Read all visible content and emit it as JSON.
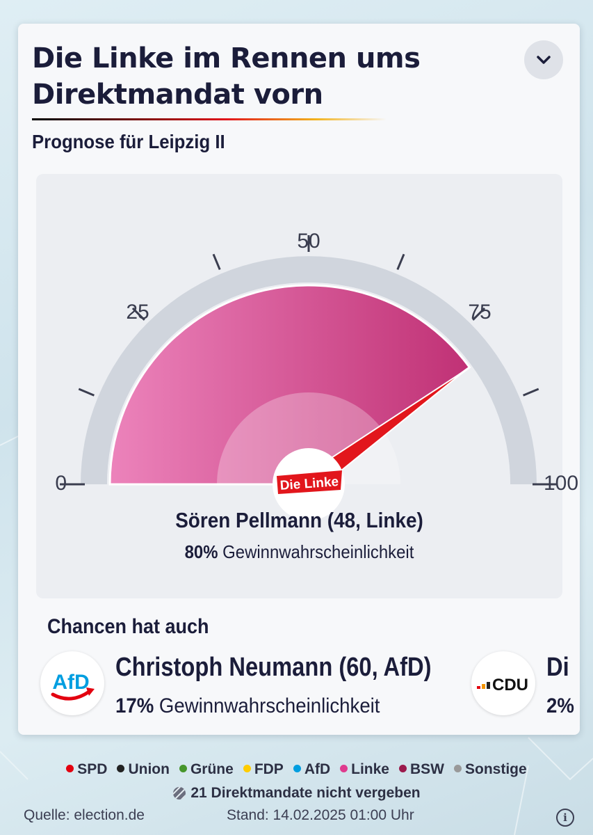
{
  "card": {
    "title": "Die Linke im Rennen ums Direktmandat vorn",
    "subtitle": "Prognose für Leipzig II",
    "collapse_icon": "chevron-down-icon"
  },
  "gauge": {
    "tick_labels": [
      "0",
      "25",
      "50",
      "75",
      "100"
    ],
    "value": 80,
    "scale_min": 0,
    "scale_max": 100,
    "fill_color": "#d2478d",
    "needle_color": "#e2161c",
    "party_logo_text": "Die Linke"
  },
  "winner": {
    "name": "Sören Pellmann (48, Linke)",
    "probability": "80%",
    "probability_label": "Gewinnwahrscheinlichkeit"
  },
  "chances": {
    "heading": "Chancen hat auch",
    "candidates": [
      {
        "logo_text": "AfD",
        "name": "Christoph Neumann (60, AfD)",
        "probability": "17%",
        "probability_label": "Gewinnwahrscheinlichkeit"
      },
      {
        "logo_text": "CDU",
        "name": "Di",
        "probability": "2%"
      }
    ]
  },
  "legend": {
    "items": [
      {
        "label": "SPD",
        "color": "#e3000f"
      },
      {
        "label": "Union",
        "color": "#222222"
      },
      {
        "label": "Grüne",
        "color": "#46962b"
      },
      {
        "label": "FDP",
        "color": "#ffcc00"
      },
      {
        "label": "AfD",
        "color": "#009ee0"
      },
      {
        "label": "Linke",
        "color": "#df3b8e"
      },
      {
        "label": "BSW",
        "color": "#9b1a4c"
      },
      {
        "label": "Sonstige",
        "color": "#999999"
      }
    ],
    "unassigned": "21 Direktmandate nicht vergeben"
  },
  "footer": {
    "source": "Quelle: election.de",
    "timestamp": "Stand: 14.02.2025 01:00 Uhr",
    "info_icon": "info-icon"
  }
}
